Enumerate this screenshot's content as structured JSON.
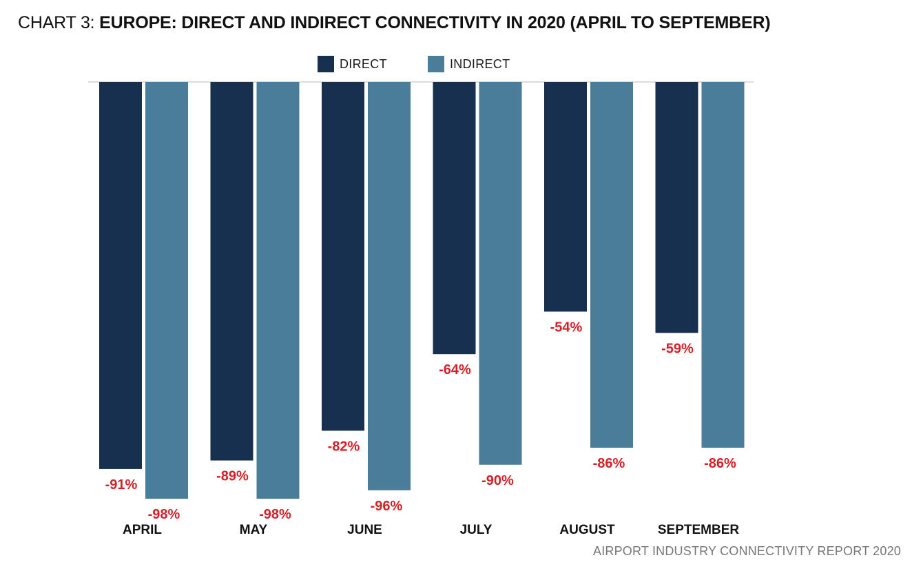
{
  "title": {
    "prefix": "CHART 3: ",
    "main": "EUROPE: DIRECT AND INDIRECT CONNECTIVITY IN 2020 (APRIL TO SEPTEMBER)"
  },
  "footer": "AIRPORT INDUSTRY CONNECTIVITY REPORT 2020",
  "colors": {
    "direct": "#17304f",
    "indirect": "#4a7d99",
    "label": "#d61f26",
    "category": "#111111",
    "baseline": "#bbbbbb"
  },
  "chart_data": {
    "type": "bar",
    "orientation": "vertical",
    "categories": [
      "APRIL",
      "MAY",
      "JUNE",
      "JULY",
      "AUGUST",
      "SEPTEMBER"
    ],
    "series": [
      {
        "name": "DIRECT",
        "values": [
          -91,
          -89,
          -82,
          -64,
          -54,
          -59
        ],
        "labels": [
          "-91%",
          "-89%",
          "-82%",
          "-64%",
          "-54%",
          "-59%"
        ]
      },
      {
        "name": "INDIRECT",
        "values": [
          -98,
          -98,
          -96,
          -90,
          -86,
          -86
        ],
        "labels": [
          "-98%",
          "-98%",
          "-96%",
          "-90%",
          "-86%",
          "-86%"
        ]
      }
    ],
    "ylim": [
      -100,
      0
    ],
    "grid": false,
    "legend": "top-center",
    "xlabel": "",
    "ylabel": ""
  }
}
